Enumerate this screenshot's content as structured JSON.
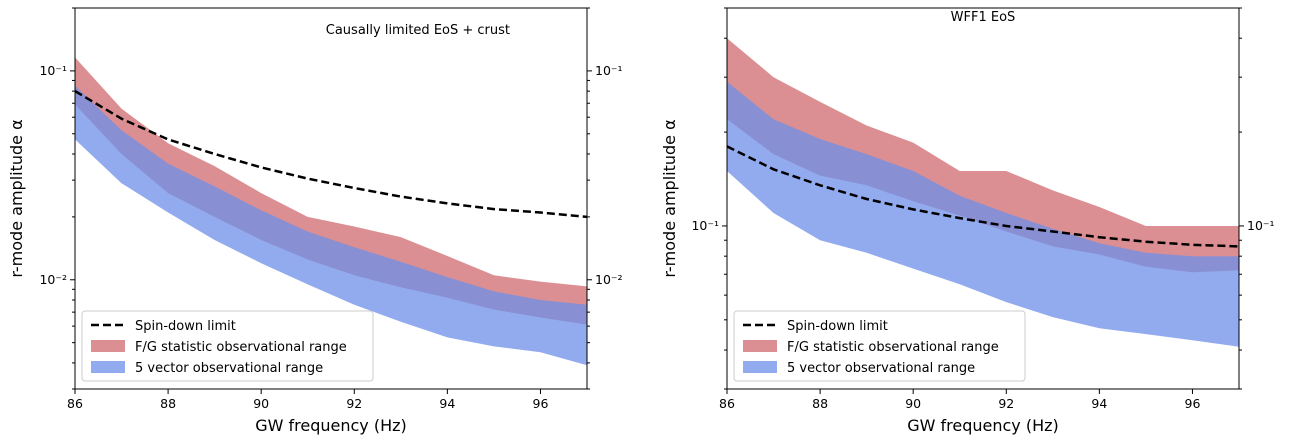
{
  "chart_data": [
    {
      "type": "area",
      "title": "Causally limited EoS + crust",
      "xlabel": "GW frequency (Hz)",
      "ylabel": "r-mode amplitude α",
      "xlim": [
        86,
        97
      ],
      "ylim": [
        0.003,
        0.2
      ],
      "y_scale": "log",
      "x_ticks": [
        "86",
        "88",
        "90",
        "92",
        "94",
        "96"
      ],
      "y_ticks_left": [
        {
          "value": 0.1,
          "label": "10⁻¹"
        },
        {
          "value": 0.01,
          "label": "10⁻²"
        }
      ],
      "y_ticks_right": [
        {
          "value": 0.1,
          "label": "10⁻¹"
        },
        {
          "value": 0.01,
          "label": "10⁻²"
        }
      ],
      "legend_position": "lower-left",
      "series": [
        {
          "name": "Spin-down limit",
          "style": "dashed-line",
          "color": "#000000",
          "x": [
            86,
            87,
            88,
            89,
            90,
            91,
            92,
            93,
            94,
            95,
            96,
            97
          ],
          "y": [
            0.08,
            0.059,
            0.047,
            0.04,
            0.0345,
            0.0305,
            0.0275,
            0.025,
            0.0232,
            0.0218,
            0.021,
            0.02
          ]
        },
        {
          "name": "F/G statistic observational range",
          "style": "band",
          "color": "#d06a6e",
          "x": [
            86,
            87,
            88,
            89,
            90,
            91,
            92,
            93,
            94,
            95,
            96,
            97
          ],
          "upper": [
            0.116,
            0.066,
            0.045,
            0.035,
            0.026,
            0.02,
            0.018,
            0.016,
            0.013,
            0.0105,
            0.0098,
            0.0093
          ],
          "lower": [
            0.069,
            0.04,
            0.026,
            0.02,
            0.0155,
            0.0125,
            0.0105,
            0.0092,
            0.0082,
            0.0072,
            0.0066,
            0.0061
          ]
        },
        {
          "name": "5 vector observational range",
          "style": "band",
          "color": "#6d8fe8",
          "x": [
            86,
            87,
            88,
            89,
            90,
            91,
            92,
            93,
            94,
            95,
            96,
            97
          ],
          "upper": [
            0.085,
            0.052,
            0.036,
            0.028,
            0.0215,
            0.017,
            0.0143,
            0.0122,
            0.0103,
            0.0088,
            0.008,
            0.0076
          ],
          "lower": [
            0.047,
            0.029,
            0.021,
            0.0155,
            0.012,
            0.0095,
            0.0076,
            0.0063,
            0.0053,
            0.0048,
            0.0045,
            0.0039
          ]
        }
      ]
    },
    {
      "type": "area",
      "title": "WFF1 EoS",
      "xlabel": "GW frequency (Hz)",
      "ylabel": "r-mode amplitude α",
      "xlim": [
        86,
        97
      ],
      "ylim": [
        0.03,
        0.5
      ],
      "y_scale": "log",
      "x_ticks": [
        "86",
        "88",
        "90",
        "92",
        "94",
        "96"
      ],
      "y_ticks_left": [
        {
          "value": 0.1,
          "label": "10⁻¹"
        }
      ],
      "y_ticks_right": [
        {
          "value": 0.1,
          "label": "10⁻¹"
        }
      ],
      "legend_position": "lower-left",
      "series": [
        {
          "name": "Spin-down limit",
          "style": "dashed-line",
          "color": "#000000",
          "x": [
            86,
            87,
            88,
            89,
            90,
            91,
            92,
            93,
            94,
            95,
            96,
            97
          ],
          "y": [
            0.18,
            0.152,
            0.135,
            0.122,
            0.113,
            0.106,
            0.1,
            0.096,
            0.092,
            0.089,
            0.087,
            0.086
          ]
        },
        {
          "name": "F/G statistic observational range",
          "style": "band",
          "color": "#d06a6e",
          "x": [
            86,
            87,
            88,
            89,
            90,
            91,
            92,
            93,
            94,
            95,
            96,
            97
          ],
          "upper": [
            0.4,
            0.3,
            0.25,
            0.21,
            0.185,
            0.15,
            0.15,
            0.13,
            0.115,
            0.1,
            0.1,
            0.1
          ],
          "lower": [
            0.22,
            0.17,
            0.145,
            0.135,
            0.12,
            0.108,
            0.096,
            0.086,
            0.081,
            0.074,
            0.071,
            0.072
          ]
        },
        {
          "name": "5 vector observational range",
          "style": "band",
          "color": "#6d8fe8",
          "x": [
            86,
            87,
            88,
            89,
            90,
            91,
            92,
            93,
            94,
            95,
            96,
            97
          ],
          "upper": [
            0.29,
            0.22,
            0.19,
            0.17,
            0.15,
            0.125,
            0.11,
            0.098,
            0.088,
            0.082,
            0.08,
            0.08
          ],
          "lower": [
            0.15,
            0.11,
            0.09,
            0.082,
            0.073,
            0.065,
            0.057,
            0.051,
            0.047,
            0.045,
            0.043,
            0.041
          ]
        }
      ]
    }
  ]
}
